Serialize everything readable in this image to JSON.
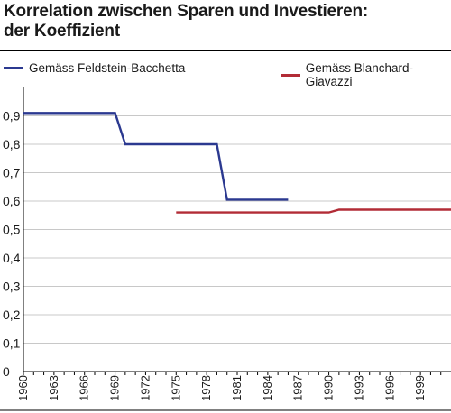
{
  "title_line1": "Korrelation zwischen Sparen und Investieren:",
  "title_line2": "der Koeffizient",
  "chart_data": {
    "type": "line",
    "title": "Korrelation zwischen Sparen und Investieren: der Koeffizient",
    "xlabel": "",
    "ylabel": "",
    "xlim": [
      1960,
      2002
    ],
    "ylim": [
      0,
      1.0
    ],
    "y_ticks": [
      "0",
      "0,1",
      "0,2",
      "0,3",
      "0,4",
      "0,5",
      "0,6",
      "0,7",
      "0,8",
      "0,9"
    ],
    "y_tick_values": [
      0,
      0.1,
      0.2,
      0.3,
      0.4,
      0.5,
      0.6,
      0.7,
      0.8,
      0.9
    ],
    "x_ticks": [
      "1960",
      "1963",
      "1966",
      "1969",
      "1972",
      "1975",
      "1978",
      "1981",
      "1984",
      "1987",
      "1990",
      "1993",
      "1996",
      "1999"
    ],
    "x_tick_values": [
      1960,
      1963,
      1966,
      1969,
      1972,
      1975,
      1978,
      1981,
      1984,
      1987,
      1990,
      1993,
      1996,
      1999
    ],
    "grid": "horizontal",
    "legend_position": "top",
    "series": [
      {
        "name": "Gemäss Feldstein-Bacchetta",
        "color": "#2b3990",
        "x": [
          1960,
          1969,
          1970,
          1979,
          1980,
          1986
        ],
        "y": [
          0.91,
          0.91,
          0.8,
          0.8,
          0.605,
          0.605
        ]
      },
      {
        "name": "Gemäss Blanchard-Giavazzi",
        "color": "#b22c36",
        "x": [
          1975,
          1990,
          1991,
          2002
        ],
        "y": [
          0.56,
          0.56,
          0.57,
          0.57
        ]
      }
    ]
  }
}
